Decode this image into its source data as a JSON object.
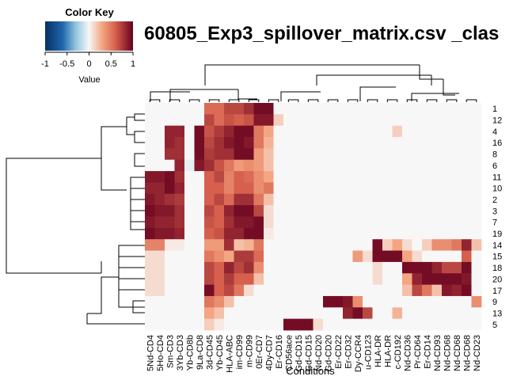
{
  "title": "60805_Exp3_spillover_matrix.csv _clas",
  "color_key": {
    "title": "Color Key",
    "xlabel": "Value",
    "ticks": [
      "-1",
      "-0.5",
      "0",
      "0.5",
      "1"
    ],
    "range": [
      -1,
      1
    ],
    "low_color": "#053061",
    "mid_color": "#F7F7F7",
    "high_color": "#67001F"
  },
  "chart_data": {
    "type": "heatmap",
    "xlabel": "Conditions",
    "columns": [
      "5Nd-CD4",
      "5Ho-CD4",
      "Sm-CD3",
      "3Yb-CD3",
      "Yb-CD8b",
      "9La-CD8",
      "3d-CD45",
      "Yb-CD45",
      "HLA-ABC",
      "im-CD99",
      "m-CD99",
      "0Er-CD7",
      "4Dy-CD7",
      "Er-CD16",
      "CD56ace",
      "Gd-CD15",
      "Gd-CD15",
      "Nd-CD20",
      "Gd-CD20",
      "Er-CD22",
      "Er-CD32",
      "Dy-CCR4",
      "u-CD123",
      "HLA-DR",
      "HLA-DR",
      "c-CD192",
      "Nd-CD36",
      "Pr-CD64",
      "Er-CD14",
      "Nd-CD93",
      "Nd-CD68",
      "Nd-CD68",
      "Nd-CD68",
      "Nd-CD23"
    ],
    "rows": [
      "1",
      "12",
      "4",
      "16",
      "8",
      "6",
      "11",
      "10",
      "2",
      "3",
      "7",
      "19",
      "14",
      "15",
      "18",
      "20",
      "17",
      "9",
      "13",
      "5"
    ],
    "values": [
      [
        0,
        0,
        0,
        0,
        0,
        0,
        0.55,
        0.55,
        0.7,
        0.7,
        0.8,
        0.95,
        0.95,
        0,
        0,
        0,
        0,
        0,
        0,
        0,
        0,
        0,
        0,
        0,
        0,
        0,
        0,
        0,
        0,
        0,
        0,
        0,
        0,
        0
      ],
      [
        0,
        0,
        0,
        0,
        0,
        0,
        0.7,
        0.55,
        0.65,
        0.6,
        0.65,
        0.9,
        0.9,
        0.15,
        0,
        0,
        0,
        0,
        0,
        0,
        0,
        0,
        0,
        0,
        0,
        0,
        0,
        0,
        0,
        0,
        0,
        0,
        0,
        0
      ],
      [
        0,
        0,
        0.85,
        0.85,
        0,
        0.95,
        0.65,
        0.75,
        0.85,
        0.95,
        0.95,
        0.5,
        0.3,
        0,
        0,
        0,
        0,
        0,
        0,
        0,
        0,
        0,
        0,
        0,
        0,
        0.15,
        0,
        0,
        0,
        0,
        0,
        0,
        0,
        0
      ],
      [
        0,
        0,
        0.85,
        0.8,
        0,
        0.95,
        0.7,
        0.8,
        0.9,
        0.95,
        0.9,
        0.5,
        0.25,
        0,
        0,
        0,
        0,
        0,
        0,
        0,
        0,
        0,
        0,
        0,
        0,
        0,
        0,
        0,
        0,
        0,
        0,
        0,
        0,
        0
      ],
      [
        0,
        0,
        0.8,
        0.8,
        0,
        0.95,
        0.75,
        0.8,
        0.8,
        0.95,
        0.95,
        0.35,
        0.2,
        0,
        0,
        0,
        0,
        0,
        0,
        0,
        0,
        0,
        0,
        0,
        0,
        0,
        0,
        0,
        0,
        0,
        0,
        0,
        0,
        0
      ],
      [
        0,
        0,
        0,
        0.85,
        -0.05,
        0.9,
        0.8,
        0.65,
        0.5,
        0.35,
        0.4,
        0.35,
        0.2,
        0,
        0,
        0,
        0,
        0,
        0,
        0,
        0,
        0,
        0,
        0,
        0,
        0,
        0,
        0,
        0,
        0,
        0,
        0,
        0,
        0
      ],
      [
        0.9,
        0.9,
        0.95,
        0.8,
        0,
        0,
        0.6,
        0.7,
        0.45,
        0.6,
        0.55,
        0.4,
        0.3,
        0,
        0,
        0,
        0,
        0,
        0,
        0,
        0,
        0,
        0,
        0,
        0,
        0,
        0,
        0,
        0,
        0,
        0,
        0,
        0,
        0
      ],
      [
        0.85,
        0.85,
        0.95,
        0.85,
        0,
        0,
        0.6,
        0.6,
        0.45,
        0.6,
        0.6,
        0.4,
        0.5,
        0,
        0,
        0,
        0,
        0,
        0,
        0,
        0,
        0,
        0,
        0,
        0,
        0,
        0,
        0,
        0,
        0,
        0,
        0,
        0,
        0
      ],
      [
        0.9,
        0.85,
        0.8,
        0.75,
        0,
        0,
        0.6,
        0.7,
        0.55,
        0.8,
        0.8,
        0.5,
        0.2,
        0,
        0,
        0,
        0,
        0,
        0,
        0,
        0,
        0,
        0,
        0,
        0,
        0,
        0,
        0,
        0,
        0,
        0,
        0,
        0,
        0
      ],
      [
        0.95,
        0.9,
        0.9,
        0.8,
        0,
        0,
        0.7,
        0.6,
        0.85,
        0.95,
        0.95,
        0.7,
        0.1,
        0,
        0,
        0,
        0,
        0,
        0,
        0,
        0,
        0,
        0,
        0,
        0,
        0,
        0,
        0,
        0,
        0,
        0,
        0,
        0,
        0
      ],
      [
        0.9,
        0.85,
        0.85,
        0.8,
        0,
        0,
        0.65,
        0.6,
        0.8,
        0.9,
        0.9,
        0.95,
        0.1,
        0,
        0,
        0,
        0,
        0,
        0,
        0,
        0,
        0,
        0,
        0,
        0,
        0,
        0,
        0,
        0,
        0,
        0,
        0,
        0,
        0
      ],
      [
        0.95,
        0.9,
        0.9,
        0.85,
        0,
        0,
        0.6,
        0.65,
        0.85,
        0.85,
        0.95,
        0.95,
        0.05,
        0,
        0,
        0,
        0,
        0,
        0,
        0,
        0,
        0,
        0,
        0,
        0,
        0,
        0,
        0,
        0,
        0,
        0,
        0,
        0,
        0
      ],
      [
        0.45,
        0.45,
        0.05,
        0.05,
        0,
        0,
        0.35,
        0.35,
        0.8,
        0.2,
        0.25,
        0.5,
        0,
        0,
        0,
        0,
        0,
        0,
        0,
        0,
        0,
        0,
        0,
        0.95,
        0.15,
        0.3,
        0.1,
        0,
        0.15,
        0.4,
        0.4,
        0.5,
        0.85,
        0.2
      ],
      [
        0.1,
        0.1,
        0,
        0,
        0,
        0,
        0.5,
        0.4,
        0.3,
        0.75,
        0.75,
        0.55,
        0,
        0,
        0,
        0,
        0,
        0,
        0,
        0,
        0,
        0.35,
        0.1,
        0.95,
        0.95,
        0.95,
        0.3,
        0.1,
        0,
        0,
        0,
        0,
        0.6,
        0
      ],
      [
        0.1,
        0.1,
        0,
        0,
        0,
        0,
        0.7,
        0.6,
        0.85,
        0.7,
        0.8,
        0.4,
        0,
        0,
        0,
        0,
        0,
        0,
        0,
        0,
        0,
        0,
        0,
        0.1,
        0,
        0,
        0.95,
        0.95,
        0.95,
        0.85,
        0.7,
        0.7,
        0.95,
        0
      ],
      [
        0.1,
        0.1,
        0,
        0,
        0,
        0,
        0.7,
        0.6,
        0.75,
        0.6,
        0.6,
        0.2,
        0,
        0,
        0,
        0,
        0,
        0,
        0,
        0,
        0,
        0,
        0,
        0.1,
        0,
        0,
        0.3,
        0.85,
        0.95,
        0.95,
        0.95,
        0.95,
        0.9,
        0
      ],
      [
        0.1,
        0.1,
        0,
        0,
        0,
        0,
        0.95,
        0.6,
        0.7,
        0.5,
        0.1,
        0,
        0,
        0,
        0,
        0,
        0,
        0,
        0,
        0,
        0,
        0,
        0,
        0,
        0,
        0,
        0.2,
        0.7,
        0.5,
        0.2,
        0.9,
        0.85,
        0.95,
        0
      ],
      [
        0,
        0,
        0,
        0,
        0,
        0,
        0.5,
        0.4,
        0.2,
        0,
        0,
        0,
        0,
        0,
        0,
        0,
        0,
        0,
        0.95,
        0.95,
        0.9,
        0.4,
        0,
        0,
        0,
        0,
        0,
        0,
        0,
        0,
        0,
        0,
        0,
        0.4
      ],
      [
        0,
        0,
        0,
        0,
        0,
        0,
        0.3,
        0.2,
        0,
        0,
        0,
        0,
        0,
        0,
        0,
        0,
        0,
        0,
        0,
        0,
        0.85,
        0.95,
        0.7,
        0,
        0,
        0.25,
        0,
        0,
        0,
        0,
        0,
        0,
        0,
        0
      ],
      [
        0,
        0,
        0,
        0,
        0,
        0,
        0.15,
        0.05,
        0,
        0,
        0,
        0,
        0,
        0,
        0.95,
        0.95,
        0.95,
        0.1,
        0,
        0,
        0,
        0,
        0,
        0,
        0,
        0,
        0,
        0,
        0,
        0,
        0,
        0,
        0,
        0
      ]
    ]
  }
}
